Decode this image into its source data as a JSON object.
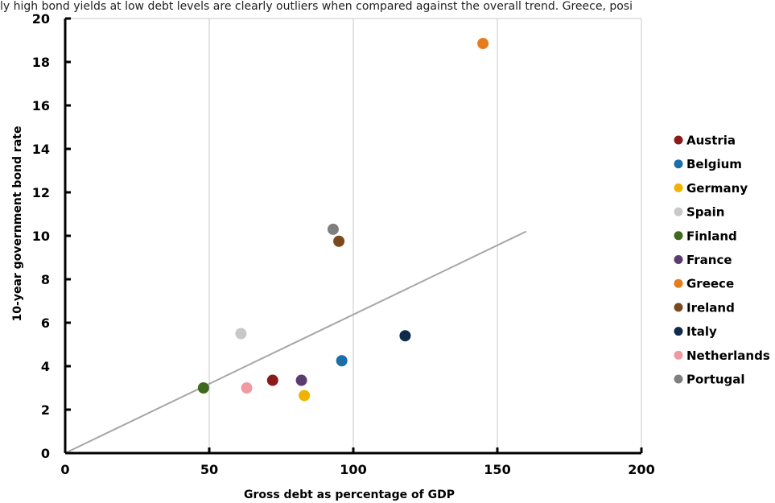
{
  "caption": "ly high bond yields at low debt levels are clearly outliers when compared against the overall trend. Greece, posi",
  "chart_data": {
    "type": "scatter",
    "title": "",
    "xlabel": "Gross debt as percentage of GDP",
    "ylabel": "10-year government bond rate",
    "xlim": [
      0,
      200
    ],
    "ylim": [
      0,
      20
    ],
    "x_ticks": [
      0,
      50,
      100,
      150,
      200
    ],
    "y_ticks": [
      0,
      2,
      4,
      6,
      8,
      10,
      12,
      14,
      16,
      18,
      20
    ],
    "grid": "vertical",
    "legend_position": "right",
    "trendline": {
      "x": [
        0,
        160
      ],
      "y": [
        0,
        10.2
      ],
      "color": "#a6a6a6"
    },
    "series": [
      {
        "name": "Austria",
        "color": "#8b1a1a",
        "x": 72,
        "y": 3.35
      },
      {
        "name": "Belgium",
        "color": "#1a6fa8",
        "x": 96,
        "y": 4.25
      },
      {
        "name": "Germany",
        "color": "#f0b400",
        "x": 83,
        "y": 2.65
      },
      {
        "name": "Spain",
        "color": "#c8c8c8",
        "x": 61,
        "y": 5.5
      },
      {
        "name": "Finland",
        "color": "#3f6a1e",
        "x": 48,
        "y": 3.0
      },
      {
        "name": "France",
        "color": "#5a3d6e",
        "x": 82,
        "y": 3.35
      },
      {
        "name": "Greece",
        "color": "#e57d1e",
        "x": 145,
        "y": 18.85
      },
      {
        "name": "Ireland",
        "color": "#7a4a1e",
        "x": 95,
        "y": 9.75
      },
      {
        "name": "Italy",
        "color": "#0f2b4c",
        "x": 118,
        "y": 5.4
      },
      {
        "name": "Netherlands",
        "color": "#ee9aa0",
        "x": 63,
        "y": 3.0
      },
      {
        "name": "Portugal",
        "color": "#7f7f7f",
        "x": 93,
        "y": 10.3
      }
    ]
  }
}
